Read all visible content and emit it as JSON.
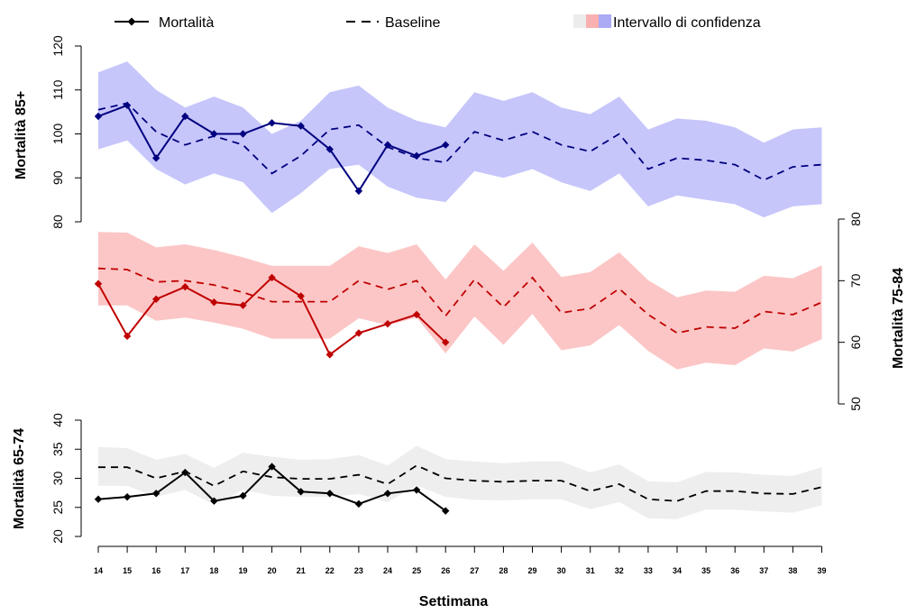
{
  "legend": {
    "mortalita_label": "Mortalità",
    "baseline_label": "Baseline",
    "ci_label": "Intervallo di confidenza"
  },
  "chart_data": {
    "type": "line",
    "xlabel": "Settimana",
    "x": [
      14,
      15,
      16,
      17,
      18,
      19,
      20,
      21,
      22,
      23,
      24,
      25,
      26,
      27,
      28,
      29,
      30,
      31,
      32,
      33,
      34,
      35,
      36,
      37,
      38,
      39
    ],
    "panels": [
      {
        "ylabel": "Mortalità 85+",
        "axis_side": "left",
        "ylim": [
          80,
          120
        ],
        "yticks": [
          80,
          90,
          100,
          110,
          120
        ],
        "color": "#00007f",
        "band_color": "#c6c6fb",
        "mortality": [
          104,
          106.5,
          94.5,
          104,
          100,
          100,
          102.5,
          101.8,
          96.5,
          87,
          97.5,
          95,
          97.5
        ],
        "baseline": [
          105.5,
          107,
          100.5,
          97.5,
          99.5,
          97.5,
          91,
          95,
          101,
          102,
          97,
          94.5,
          93.5,
          100.5,
          98.5,
          100.5,
          97.5,
          96,
          100,
          92,
          94.5,
          94,
          93,
          89.5,
          92.5,
          93
        ],
        "ci_upper": [
          114,
          116.5,
          110,
          106,
          108.5,
          106,
          100,
          103,
          109.5,
          111,
          106,
          103,
          101.5,
          109.5,
          107.5,
          109.5,
          106,
          104.5,
          108.5,
          101,
          103.5,
          103,
          101.5,
          98,
          101,
          101.5
        ],
        "ci_lower": [
          96.5,
          98.5,
          92,
          88.5,
          91,
          89,
          82,
          86.5,
          92,
          93,
          88,
          85.5,
          84.5,
          91.5,
          90,
          92,
          89,
          87,
          91,
          83.5,
          86,
          85,
          84,
          81,
          83.5,
          84
        ]
      },
      {
        "ylabel": "Mortalità 75-84",
        "axis_side": "right",
        "ylim": [
          50,
          80
        ],
        "yticks": [
          50,
          60,
          70,
          80
        ],
        "color": "#c00000",
        "band_color": "#fcc6c6",
        "mortality": [
          69.5,
          61,
          67,
          69,
          66.5,
          66,
          70.5,
          67.5,
          58,
          61.5,
          63,
          64.5,
          60
        ],
        "baseline": [
          72,
          71.8,
          69.8,
          70,
          69.3,
          68.1,
          66.6,
          66.6,
          66.6,
          70,
          68.6,
          70,
          64.3,
          70.2,
          65.7,
          70.5,
          64.8,
          65.5,
          68.7,
          64.5,
          61.5,
          62.5,
          62.3,
          65,
          64.5,
          66.5
        ],
        "ci_upper": [
          77.9,
          77.8,
          75.4,
          75.9,
          75,
          73.8,
          72.4,
          72.4,
          72.4,
          75.6,
          74.5,
          75.9,
          70.2,
          75.9,
          71.6,
          76.2,
          70.6,
          71.4,
          74.6,
          70.1,
          67.3,
          68.4,
          68.2,
          70.8,
          70.4,
          72.5
        ],
        "ci_lower": [
          66,
          66,
          63.5,
          64,
          63.2,
          62.2,
          60.6,
          60.6,
          60.6,
          63.9,
          62.8,
          64,
          58.2,
          64.2,
          59.6,
          64.6,
          58.7,
          59.5,
          62.8,
          58.6,
          55.6,
          56.7,
          56.3,
          59,
          58.5,
          60.5
        ]
      },
      {
        "ylabel": "Mortalità 65-74",
        "axis_side": "left",
        "ylim": [
          20,
          40
        ],
        "yticks": [
          20,
          25,
          30,
          35,
          40
        ],
        "color": "#000000",
        "band_color": "#eeeeee",
        "mortality": [
          26.4,
          26.8,
          27.4,
          31,
          26.1,
          27,
          32,
          27.7,
          27.4,
          25.6,
          27.4,
          28,
          24.4
        ],
        "baseline": [
          31.9,
          31.9,
          30,
          31.2,
          28.7,
          31.2,
          30.2,
          29.9,
          29.9,
          30.6,
          29,
          32.2,
          30,
          29.6,
          29.4,
          29.6,
          29.6,
          27.8,
          29,
          26.4,
          26.1,
          27.8,
          27.8,
          27.4,
          27.3,
          28.5
        ],
        "ci_upper": [
          35.4,
          35.2,
          33.2,
          34.2,
          31.8,
          34.4,
          33.7,
          33.2,
          33.3,
          34,
          32.2,
          35.6,
          33.3,
          32.9,
          32.6,
          32.9,
          32.9,
          31,
          32.4,
          29.5,
          29.3,
          31.1,
          31,
          30.6,
          30.4,
          31.9
        ],
        "ci_lower": [
          28.7,
          28.7,
          26.8,
          28,
          25.5,
          28,
          27,
          26.8,
          26.8,
          27.3,
          25.9,
          28.8,
          26.8,
          26.3,
          26.2,
          26.4,
          26.4,
          24.7,
          25.9,
          23.1,
          23,
          24.6,
          24.6,
          24.3,
          24.1,
          25.4
        ]
      }
    ]
  }
}
